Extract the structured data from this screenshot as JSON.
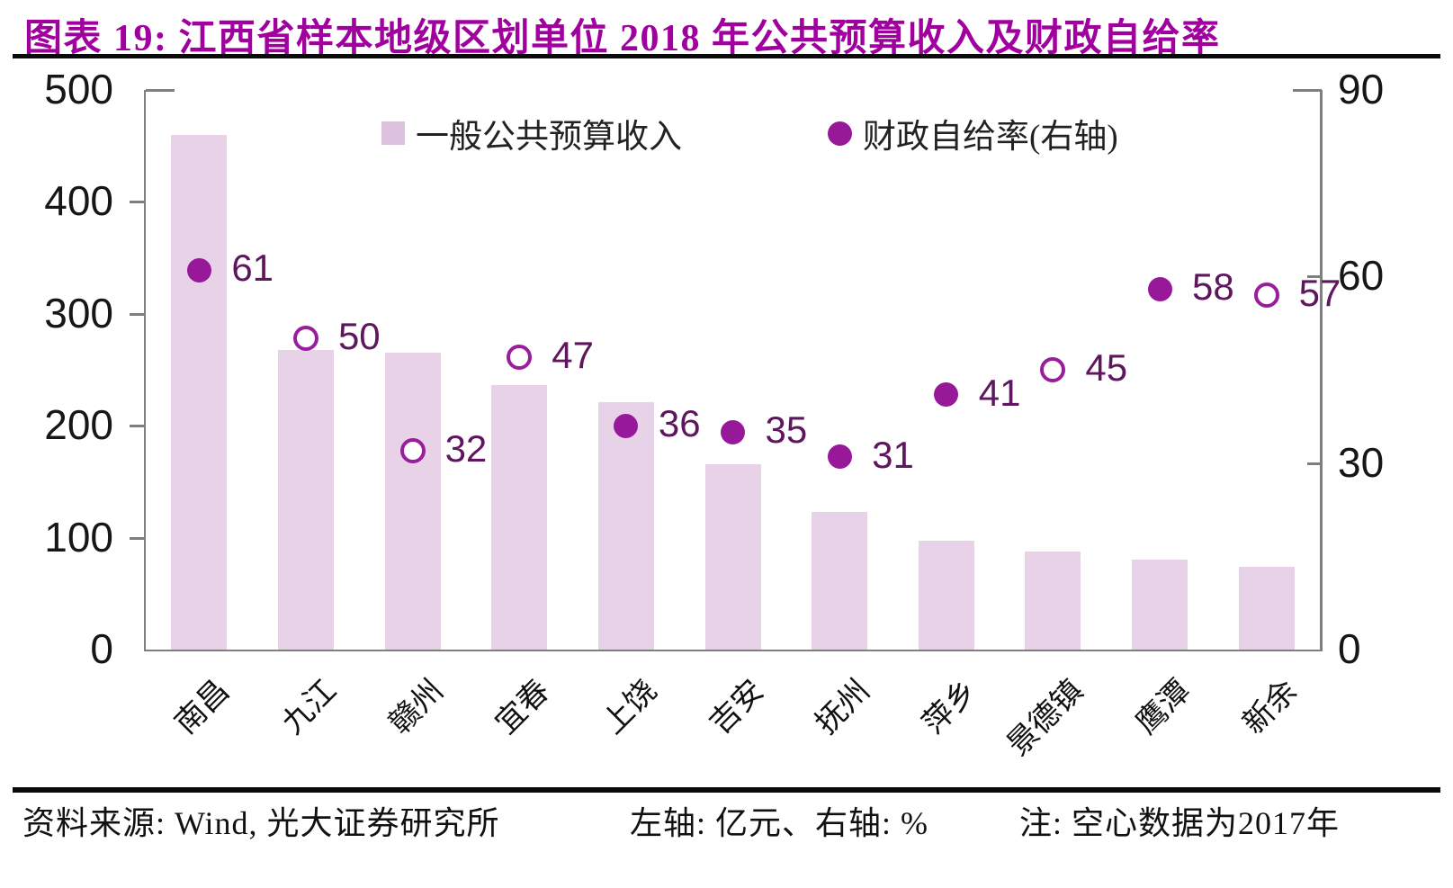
{
  "title": "图表 19: 江西省样本地级区划单位 2018 年公共预算收入及财政自给率",
  "chart_data": {
    "type": "bar",
    "subtype": "bar + scatter combo, dual axis",
    "categories": [
      "南昌",
      "九江",
      "赣州",
      "宜春",
      "上饶",
      "吉安",
      "抚州",
      "萍乡",
      "景德镇",
      "鹰潭",
      "新余"
    ],
    "series": [
      {
        "name": "一般公共预算收入",
        "type": "bar",
        "axis": "left",
        "unit": "亿元",
        "values": [
          460,
          268,
          265,
          236,
          221,
          166,
          123,
          97,
          88,
          80,
          74
        ]
      },
      {
        "name": "财政自给率(右轴)",
        "type": "scatter",
        "axis": "right",
        "unit": "%",
        "values": [
          61,
          50,
          32,
          47,
          36,
          35,
          31,
          41,
          45,
          58,
          57
        ],
        "hollow_2017": [
          false,
          true,
          true,
          true,
          false,
          false,
          false,
          false,
          true,
          false,
          true
        ]
      }
    ],
    "left_axis": {
      "min": 0,
      "max": 500,
      "ticks": [
        0,
        100,
        200,
        300,
        400,
        500
      ],
      "label": "亿元"
    },
    "right_axis": {
      "min": 0,
      "max": 90,
      "ticks": [
        0,
        30,
        60,
        90
      ],
      "label": "%"
    },
    "legend_position": "top-inside",
    "grid": false,
    "annotation": "空心数据为2017年"
  },
  "footer": {
    "source": "资料来源: Wind, 光大证券研究所",
    "axes_note": "左轴: 亿元、右轴: %",
    "hollow_note": "注: 空心数据为2017年"
  },
  "colors": {
    "title": "#A0009E",
    "bar": "#E7D2E8",
    "dot": "#98189A",
    "dot_label": "#5E165E",
    "axis_line": "#7f7f7f",
    "text": "#161616",
    "rule": "#0a0a0a"
  }
}
